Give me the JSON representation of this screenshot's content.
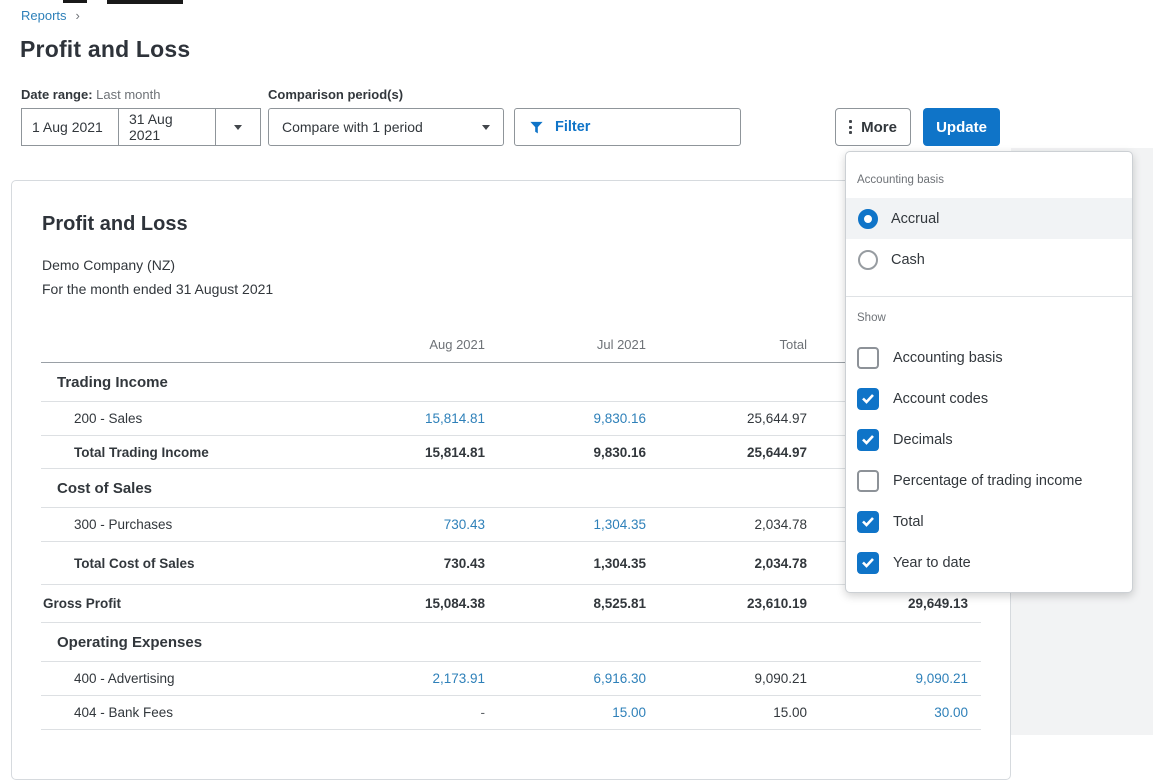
{
  "breadcrumb": {
    "label": "Reports",
    "separator": "›"
  },
  "page_title": "Profit and Loss",
  "controls": {
    "date_range_label": "Date range:",
    "date_range_value": "Last month",
    "date_start": "1 Aug 2021",
    "date_end": "31 Aug 2021",
    "comparison_label": "Comparison period(s)",
    "comparison_value": "Compare with 1 period",
    "filter_label": "Filter",
    "more_label": "More",
    "update_label": "Update"
  },
  "report": {
    "title": "Profit and Loss",
    "company": "Demo Company (NZ)",
    "period": "For the month ended 31 August 2021",
    "columns": [
      "Aug 2021",
      "Jul 2021",
      "Total",
      ""
    ],
    "rows": [
      {
        "type": "section",
        "label": "Trading Income",
        "values": [
          null,
          null,
          null,
          null
        ]
      },
      {
        "type": "account",
        "label": "200 - Sales",
        "values": [
          {
            "t": "15,814.81",
            "s": "link"
          },
          {
            "t": "9,830.16",
            "s": "link"
          },
          {
            "t": "25,644.97",
            "s": "plain"
          },
          null
        ]
      },
      {
        "type": "total",
        "label": "Total Trading Income",
        "values": [
          {
            "t": "15,814.81",
            "s": "bold"
          },
          {
            "t": "9,830.16",
            "s": "bold"
          },
          {
            "t": "25,644.97",
            "s": "bold"
          },
          null
        ]
      },
      {
        "type": "section",
        "label": "Cost of Sales",
        "values": [
          null,
          null,
          null,
          null
        ]
      },
      {
        "type": "account",
        "label": "300 - Purchases",
        "values": [
          {
            "t": "730.43",
            "s": "link"
          },
          {
            "t": "1,304.35",
            "s": "link"
          },
          {
            "t": "2,034.78",
            "s": "plain"
          },
          null
        ]
      },
      {
        "type": "total",
        "label": "Total Cost of Sales",
        "variant": "tall",
        "values": [
          {
            "t": "730.43",
            "s": "bold"
          },
          {
            "t": "1,304.35",
            "s": "bold"
          },
          {
            "t": "2,034.78",
            "s": "bold"
          },
          null
        ]
      },
      {
        "type": "grand",
        "label": "Gross Profit",
        "values": [
          {
            "t": "15,084.38",
            "s": "bold"
          },
          {
            "t": "8,525.81",
            "s": "bold"
          },
          {
            "t": "23,610.19",
            "s": "bold"
          },
          {
            "t": "29,649.13",
            "s": "bold"
          }
        ]
      },
      {
        "type": "section",
        "label": "Operating Expenses",
        "values": [
          null,
          null,
          null,
          null
        ]
      },
      {
        "type": "account",
        "label": "400 - Advertising",
        "values": [
          {
            "t": "2,173.91",
            "s": "link"
          },
          {
            "t": "6,916.30",
            "s": "link"
          },
          {
            "t": "9,090.21",
            "s": "plain"
          },
          {
            "t": "9,090.21",
            "s": "link"
          }
        ]
      },
      {
        "type": "account",
        "label": "404 - Bank Fees",
        "values": [
          {
            "t": "-",
            "s": "muted"
          },
          {
            "t": "15.00",
            "s": "link"
          },
          {
            "t": "15.00",
            "s": "plain"
          },
          {
            "t": "30.00",
            "s": "link"
          }
        ]
      }
    ]
  },
  "more_menu": {
    "accounting_basis_label": "Accounting basis",
    "options": [
      {
        "label": "Accrual",
        "selected": true
      },
      {
        "label": "Cash",
        "selected": false
      }
    ],
    "show_label": "Show",
    "checkboxes": [
      {
        "label": "Accounting basis",
        "checked": false
      },
      {
        "label": "Account codes",
        "checked": true
      },
      {
        "label": "Decimals",
        "checked": true
      },
      {
        "label": "Percentage of trading income",
        "checked": false
      },
      {
        "label": "Total",
        "checked": true
      },
      {
        "label": "Year to date",
        "checked": true
      }
    ]
  },
  "colors": {
    "accent": "#0f74c8",
    "link": "#2e80b9"
  }
}
